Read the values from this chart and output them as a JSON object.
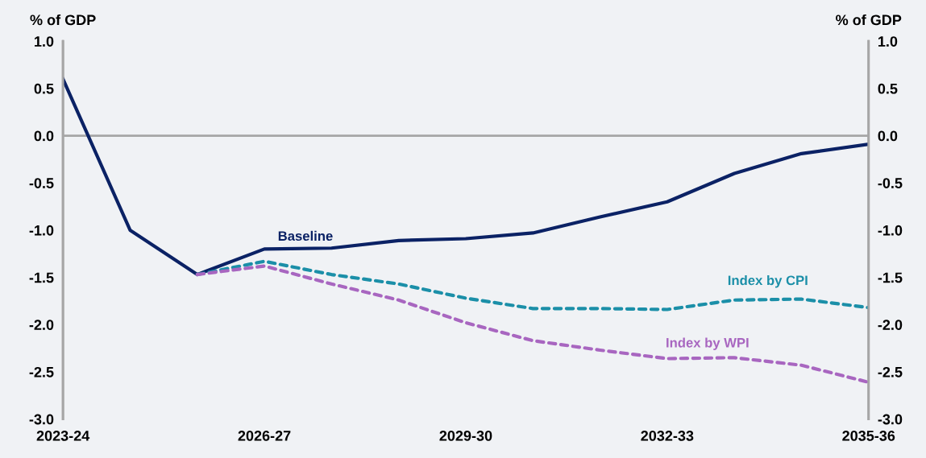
{
  "chart_data": {
    "type": "line",
    "ylabel": "% of GDP",
    "y2label": "% of GDP",
    "categories": [
      "2023-24",
      null,
      null,
      "2026-27",
      null,
      null,
      "2029-30",
      null,
      null,
      "2032-33",
      null,
      null,
      "2035-36"
    ],
    "series": [
      {
        "name": "Baseline",
        "color": "#0b2265",
        "line_style": "solid",
        "values": [
          0.6,
          -1.0,
          -1.47,
          -1.2,
          -1.19,
          -1.11,
          -1.09,
          -1.03,
          -0.86,
          -0.7,
          -0.4,
          -0.19,
          -0.09
        ]
      },
      {
        "name": "Index by CPI",
        "color": "#1b8fa8",
        "line_style": "dashed",
        "values": [
          null,
          null,
          -1.47,
          -1.33,
          -1.47,
          -1.57,
          -1.72,
          -1.83,
          -1.83,
          -1.84,
          -1.74,
          -1.73,
          -1.82
        ]
      },
      {
        "name": "Index by WPI",
        "color": "#a866c0",
        "line_style": "dashed",
        "values": [
          null,
          null,
          -1.47,
          -1.38,
          -1.57,
          -1.74,
          -1.98,
          -2.17,
          -2.27,
          -2.36,
          -2.35,
          -2.43,
          -2.61
        ]
      }
    ],
    "ylim": [
      -3.0,
      1.0
    ],
    "yticks": [
      {
        "value": -3.0,
        "label": "-3.0"
      },
      {
        "value": -2.5,
        "label": "-2.5"
      },
      {
        "value": -2.0,
        "label": "-2.0"
      },
      {
        "value": -1.5,
        "label": "-1.5"
      },
      {
        "value": -1.0,
        "label": "-1.0"
      },
      {
        "value": -0.5,
        "label": "-0.5"
      },
      {
        "value": 0.0,
        "label": "0.0"
      },
      {
        "value": 0.5,
        "label": "0.5"
      },
      {
        "value": 1.0,
        "label": "1.0"
      }
    ],
    "y2lim": [
      -3.0,
      1.0
    ],
    "y2ticks": [
      {
        "value": -3.0,
        "label": "-3.0"
      },
      {
        "value": -2.5,
        "label": "-2.5"
      },
      {
        "value": -2.0,
        "label": "-2.0"
      },
      {
        "value": -1.5,
        "label": "-1.5"
      },
      {
        "value": -1.0,
        "label": "-1.0"
      },
      {
        "value": -0.5,
        "label": "-0.5"
      },
      {
        "value": 0.0,
        "label": "0.0"
      },
      {
        "value": 0.5,
        "label": "0.5"
      },
      {
        "value": 1.0,
        "label": "1.0"
      }
    ],
    "ref_lines": [
      {
        "axis": "y",
        "value": 0,
        "color": "#a6a6a6"
      }
    ],
    "grid": false,
    "legend": false
  }
}
